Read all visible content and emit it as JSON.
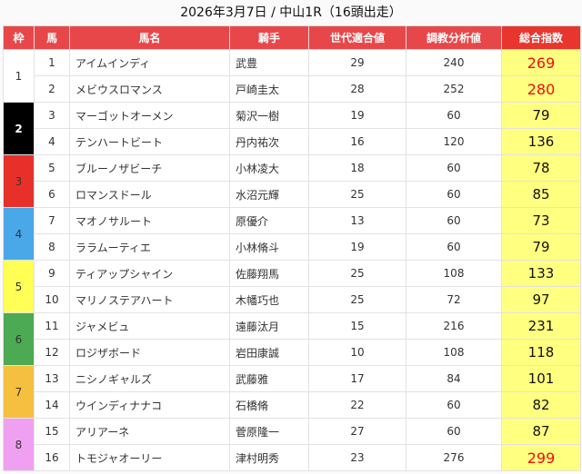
{
  "title": "2026年3月7日 / 中山1R（16頭出走）",
  "headers": [
    "枠",
    "馬",
    "馬名",
    "騎手",
    "世代適合値",
    "調教分析値",
    "総合指数"
  ],
  "colors": {
    "header": "#e8474a",
    "total_bg": "#ffff80",
    "highlight_text": "#f00d0d",
    "frames": {
      "1": "#ffffff",
      "2": "#000000",
      "3": "#e8302a",
      "4": "#4aa8e8",
      "5": "#ffff55",
      "6": "#4caa55",
      "7": "#f5c040",
      "8": "#f0a0f0"
    }
  },
  "rows": [
    {
      "frame": "1",
      "num": "1",
      "name": "アイムインディ",
      "jockey": "武豊",
      "gen": "29",
      "train": "240",
      "total": "269",
      "highlight": true
    },
    {
      "frame": "1",
      "num": "2",
      "name": "メビウスロマンス",
      "jockey": "戸崎圭太",
      "gen": "28",
      "train": "252",
      "total": "280",
      "highlight": true
    },
    {
      "frame": "2",
      "num": "3",
      "name": "マーゴットオーメン",
      "jockey": "菊沢一樹",
      "gen": "19",
      "train": "60",
      "total": "79"
    },
    {
      "frame": "2",
      "num": "4",
      "name": "テンハートビート",
      "jockey": "丹内祐次",
      "gen": "16",
      "train": "120",
      "total": "136"
    },
    {
      "frame": "3",
      "num": "5",
      "name": "ブルーノザビーチ",
      "jockey": "小林凌大",
      "gen": "18",
      "train": "60",
      "total": "78"
    },
    {
      "frame": "3",
      "num": "6",
      "name": "ロマンスドール",
      "jockey": "水沼元輝",
      "gen": "25",
      "train": "60",
      "total": "85"
    },
    {
      "frame": "4",
      "num": "7",
      "name": "マオノサルート",
      "jockey": "原優介",
      "gen": "13",
      "train": "60",
      "total": "73"
    },
    {
      "frame": "4",
      "num": "8",
      "name": "ララムーティエ",
      "jockey": "小林脩斗",
      "gen": "19",
      "train": "60",
      "total": "79"
    },
    {
      "frame": "5",
      "num": "9",
      "name": "ティアップシャイン",
      "jockey": "佐藤翔馬",
      "gen": "25",
      "train": "108",
      "total": "133"
    },
    {
      "frame": "5",
      "num": "10",
      "name": "マリノステアハート",
      "jockey": "木幡巧也",
      "gen": "25",
      "train": "72",
      "total": "97"
    },
    {
      "frame": "6",
      "num": "11",
      "name": "ジャメビュ",
      "jockey": "遠藤汰月",
      "gen": "15",
      "train": "216",
      "total": "231"
    },
    {
      "frame": "6",
      "num": "12",
      "name": "ロジザボード",
      "jockey": "岩田康誠",
      "gen": "10",
      "train": "108",
      "total": "118"
    },
    {
      "frame": "7",
      "num": "13",
      "name": "ニシノギャルズ",
      "jockey": "武藤雅",
      "gen": "17",
      "train": "84",
      "total": "101"
    },
    {
      "frame": "7",
      "num": "14",
      "name": "ウインディナナコ",
      "jockey": "石橋脩",
      "gen": "22",
      "train": "60",
      "total": "82"
    },
    {
      "frame": "8",
      "num": "15",
      "name": "アリアーネ",
      "jockey": "菅原隆一",
      "gen": "27",
      "train": "60",
      "total": "87"
    },
    {
      "frame": "8",
      "num": "16",
      "name": "トモジャオーリー",
      "jockey": "津村明秀",
      "gen": "23",
      "train": "276",
      "total": "299",
      "highlight": true
    }
  ]
}
